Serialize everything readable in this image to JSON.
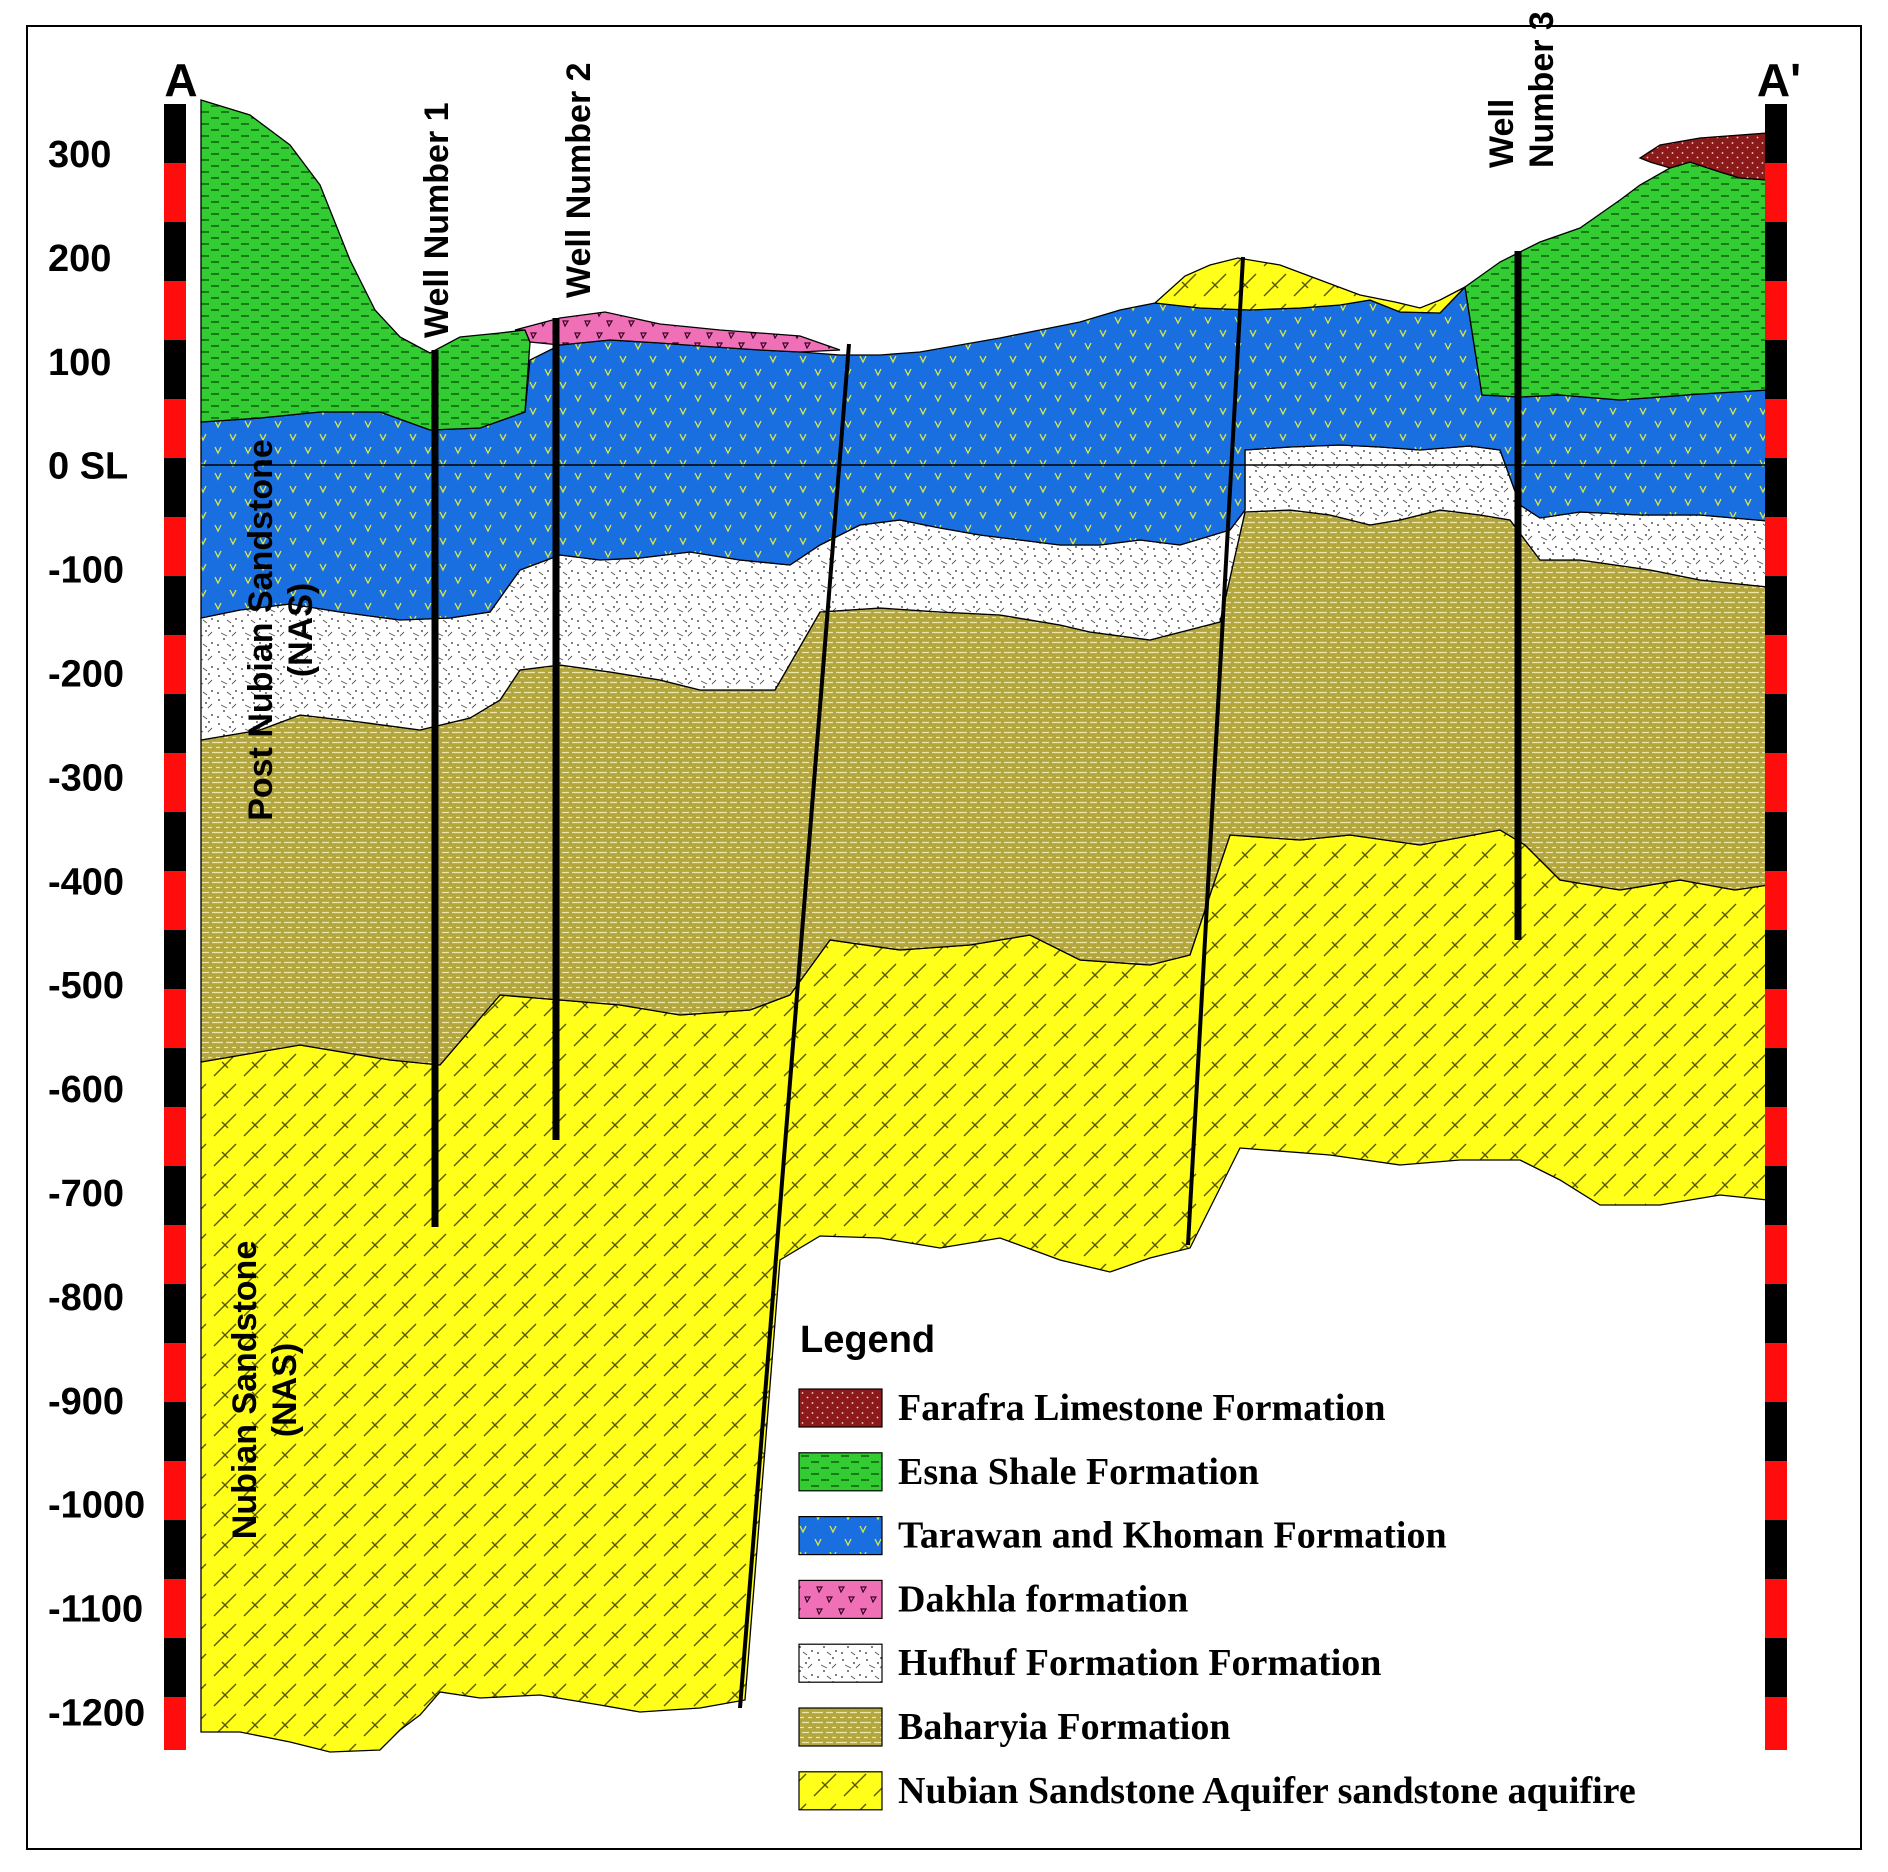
{
  "endpoints": {
    "left": "A",
    "right": "A'"
  },
  "axis": {
    "ticks": [
      "300",
      "200",
      "100",
      "0 SL",
      "-100",
      "-200",
      "-300",
      "-400",
      "-500",
      "-600",
      "-700",
      "-800",
      "-900",
      "-1000",
      "-1100",
      "-1200"
    ]
  },
  "wells": [
    "Well Number 1",
    "Well Number 2",
    "Well\nNumber 3"
  ],
  "side_labels": {
    "upper": "Post Nubian Sandstone\n(NAS)",
    "lower": "Nubian Sandstone\n(NAS)"
  },
  "legend": {
    "title": "Legend",
    "items": [
      {
        "label": "Farafra Limestone Formation",
        "color": "#8b1a1a"
      },
      {
        "label": "Esna Shale Formation",
        "color": "#33cc33"
      },
      {
        "label": "Tarawan and Khoman Formation",
        "color": "#1a6fe0"
      },
      {
        "label": "Dakhla formation",
        "color": "#f070b8"
      },
      {
        "label": "Hufhuf Formation Formation",
        "color": "#ffffff"
      },
      {
        "label": "Baharyia Formation",
        "color": "#b4a63e"
      },
      {
        "label": "Nubian Sandstone Aquifer sandstone aquifire",
        "color": "#ffff1a"
      }
    ]
  }
}
